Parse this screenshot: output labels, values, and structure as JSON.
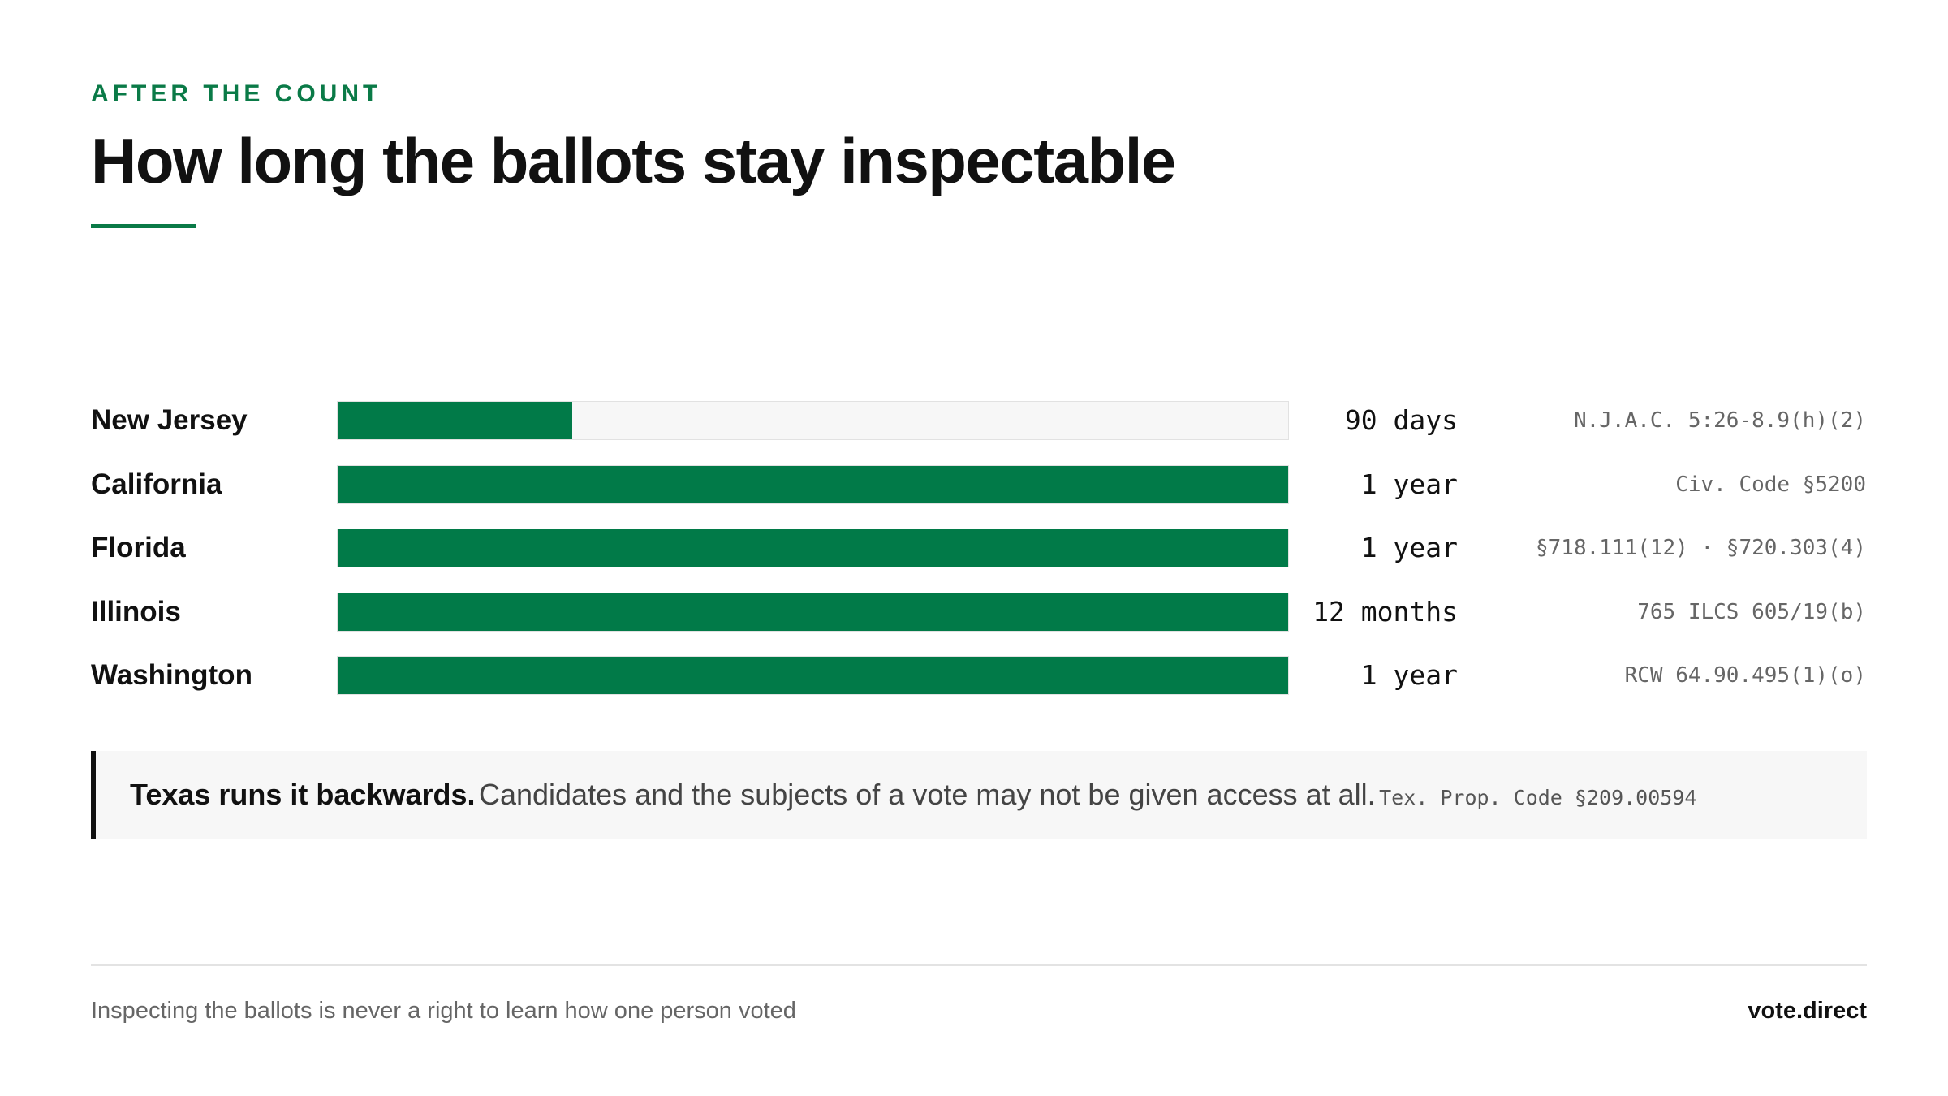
{
  "header": {
    "eyebrow": "AFTER THE COUNT",
    "title": "How long the ballots stay inspectable"
  },
  "colors": {
    "accent": "#0a7a47",
    "bar_fill": "#017a48",
    "bar_track": "#f7f7f7"
  },
  "chart_data": {
    "type": "bar",
    "orientation": "horizontal",
    "categories": [
      "New Jersey",
      "California",
      "Florida",
      "Illinois",
      "Washington"
    ],
    "values": [
      90,
      365,
      365,
      365,
      365
    ],
    "unit": "days",
    "xlim": [
      0,
      365
    ],
    "value_labels": [
      "90 days",
      "1 year",
      "1 year",
      "12 months",
      "1 year"
    ],
    "citations": [
      "N.J.A.C. 5:26-8.9(h)(2)",
      "Civ. Code §5200",
      "§718.111(12) · §720.303(4)",
      "765 ILCS 605/19(b)",
      "RCW 64.90.495(1)(o)"
    ],
    "grid": false,
    "legend": "none"
  },
  "callout": {
    "strong": "Texas runs it backwards.",
    "body": "Candidates and the subjects of a vote may not be given access at all.",
    "citation": "Tex. Prop. Code §209.00594"
  },
  "footer": {
    "note": "Inspecting the ballots is never a right to learn how one person voted",
    "brand": "vote.direct"
  }
}
